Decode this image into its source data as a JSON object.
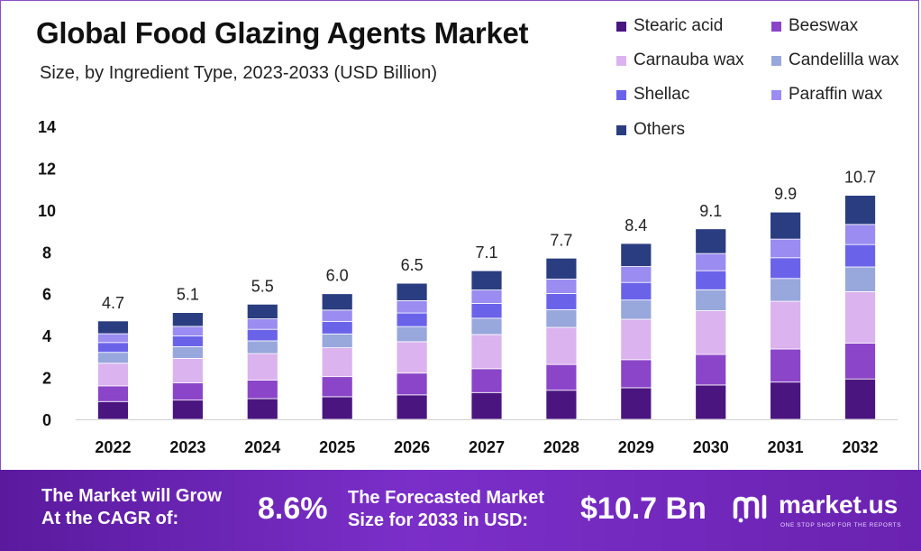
{
  "chart_data": {
    "type": "bar",
    "stacked": true,
    "title": "Global Food Glazing Agents Market",
    "subtitle": "Size, by Ingredient Type, 2023-2033 (USD Billion)",
    "categories": [
      "2022",
      "2023",
      "2024",
      "2025",
      "2026",
      "2027",
      "2028",
      "2029",
      "2030",
      "2031",
      "2032"
    ],
    "totals": [
      "4.7",
      "5.1",
      "5.5",
      "6.0",
      "6.5",
      "7.1",
      "7.7",
      "8.4",
      "9.1",
      "9.9",
      "10.7"
    ],
    "ylim": [
      0,
      14
    ],
    "yticks": [
      "0",
      "2",
      "4",
      "6",
      "8",
      "10",
      "12",
      "14"
    ],
    "legend_position": "top-right",
    "series": [
      {
        "name": "Stearic acid",
        "color": "#4b1580",
        "values": [
          0.85,
          0.92,
          0.99,
          1.08,
          1.17,
          1.28,
          1.39,
          1.51,
          1.64,
          1.78,
          1.93
        ]
      },
      {
        "name": "Beeswax",
        "color": "#8b45c8",
        "values": [
          0.75,
          0.82,
          0.88,
          0.96,
          1.04,
          1.14,
          1.23,
          1.34,
          1.46,
          1.58,
          1.71
        ]
      },
      {
        "name": "Carnauba wax",
        "color": "#dbb3ee",
        "values": [
          1.08,
          1.17,
          1.27,
          1.38,
          1.5,
          1.63,
          1.77,
          1.93,
          2.09,
          2.28,
          2.46
        ]
      },
      {
        "name": "Candelilla wax",
        "color": "#98a7dc",
        "values": [
          0.52,
          0.56,
          0.61,
          0.66,
          0.72,
          0.78,
          0.85,
          0.92,
          1.0,
          1.09,
          1.18
        ]
      },
      {
        "name": "Shellac",
        "color": "#6a63ea",
        "values": [
          0.47,
          0.51,
          0.55,
          0.6,
          0.65,
          0.71,
          0.77,
          0.84,
          0.91,
          0.99,
          1.07
        ]
      },
      {
        "name": "Paraffin wax",
        "color": "#9a8cf0",
        "values": [
          0.42,
          0.46,
          0.5,
          0.54,
          0.59,
          0.64,
          0.69,
          0.76,
          0.82,
          0.89,
          0.96
        ]
      },
      {
        "name": "Others",
        "color": "#2a3d80",
        "values": [
          0.61,
          0.66,
          0.7,
          0.78,
          0.83,
          0.92,
          1.0,
          1.1,
          1.18,
          1.29,
          1.39
        ]
      }
    ]
  },
  "footer": {
    "cagr_label_line1": "The Market will Grow",
    "cagr_label_line2": "At the CAGR of:",
    "cagr_value": "8.6%",
    "forecast_label_line1": "The Forecasted Market",
    "forecast_label_line2": "Size for 2033 in USD:",
    "forecast_value": "$10.7 Bn",
    "brand_name": "market.us",
    "brand_tagline": "ONE STOP SHOP FOR THE REPORTS",
    "background_color": "#6a22b0"
  }
}
